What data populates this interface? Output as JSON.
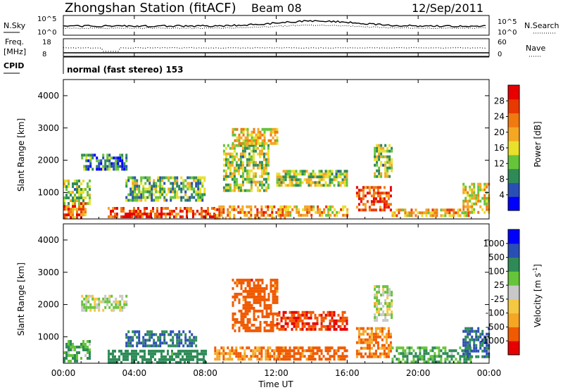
{
  "header": {
    "station": "Zhongshan Station (fitACF)",
    "beam": "Beam 08",
    "date": "12/Sep/2011",
    "cpid": "normal (fast stereo) 153"
  },
  "side_labels": {
    "nsky": "N.Sky",
    "freq_1": "Freq.",
    "freq_2": "[MHz]",
    "cpid": "CPID",
    "nsearch": "N.Search",
    "nave": "Nave"
  },
  "noise_axis": {
    "low": "10^0",
    "high": "10^5",
    "right_low": "10^0",
    "right_high": "10^5"
  },
  "freq_axis": {
    "low": "8",
    "high": "18",
    "right_low": "0",
    "right_high": "60"
  },
  "colors": {
    "power_scale": [
      "#0000ff",
      "#2a4fb4",
      "#2e8b57",
      "#66c43a",
      "#e8e02a",
      "#f5a623",
      "#f07a10",
      "#e83a00",
      "#e80000"
    ],
    "velocity_scale": [
      "#e80000",
      "#f05a00",
      "#f5a623",
      "#f5c842",
      "#c8c8c8",
      "#66c43a",
      "#2e8b57",
      "#2a4fb4",
      "#0000ff"
    ]
  },
  "chart_data": [
    {
      "type": "heatmap",
      "name": "power",
      "ylabel": "Slant Range [km]",
      "colorbar_label": "Power [dB]",
      "colorbar_ticks": [
        "4",
        "8",
        "12",
        "16",
        "20",
        "24",
        "28"
      ],
      "yticks": [
        "1000",
        "2000",
        "3000",
        "4000"
      ],
      "ylim": [
        180,
        4500
      ],
      "xlim_hours": [
        0,
        24
      ],
      "xticks": [
        "00:00",
        "04:00",
        "08:00",
        "12:00",
        "16:00",
        "20:00",
        "00:00"
      ],
      "regions": [
        {
          "t0": 0.0,
          "t1": 1.2,
          "r0": 250,
          "r1": 700,
          "value": 24
        },
        {
          "t0": 0.0,
          "t1": 1.5,
          "r0": 700,
          "r1": 1400,
          "value": 12
        },
        {
          "t0": 1.0,
          "t1": 3.5,
          "r0": 1700,
          "r1": 2200,
          "value": 8
        },
        {
          "t0": 2.5,
          "t1": 8.5,
          "r0": 250,
          "r1": 550,
          "value": 26
        },
        {
          "t0": 3.5,
          "t1": 8.0,
          "r0": 800,
          "r1": 1500,
          "value": 12
        },
        {
          "t0": 8.5,
          "t1": 12.5,
          "r0": 250,
          "r1": 600,
          "value": 22
        },
        {
          "t0": 9.0,
          "t1": 11.5,
          "r0": 1100,
          "r1": 2500,
          "value": 14
        },
        {
          "t0": 9.5,
          "t1": 12.0,
          "r0": 2500,
          "r1": 3000,
          "value": 18
        },
        {
          "t0": 12.0,
          "t1": 16.0,
          "r0": 1200,
          "r1": 1700,
          "value": 14
        },
        {
          "t0": 12.5,
          "t1": 16.0,
          "r0": 300,
          "r1": 600,
          "value": 20
        },
        {
          "t0": 16.5,
          "t1": 18.5,
          "r0": 500,
          "r1": 1200,
          "value": 26
        },
        {
          "t0": 17.5,
          "t1": 18.5,
          "r0": 1500,
          "r1": 2500,
          "value": 14
        },
        {
          "t0": 18.5,
          "t1": 23.0,
          "r0": 250,
          "r1": 500,
          "value": 20
        },
        {
          "t0": 22.5,
          "t1": 24.0,
          "r0": 350,
          "r1": 1300,
          "value": 18
        }
      ]
    },
    {
      "type": "heatmap",
      "name": "velocity",
      "ylabel": "Slant Range [km]",
      "colorbar_label": "Velocity [m s^-1]",
      "colorbar_ticks": [
        "-1000",
        "-500",
        "-100",
        "-25",
        "25",
        "100",
        "500",
        "1000"
      ],
      "yticks": [
        "1000",
        "2000",
        "3000",
        "4000"
      ],
      "ylim": [
        180,
        4500
      ],
      "xlim_hours": [
        0,
        24
      ],
      "xlabel": "Time UT",
      "xticks": [
        "00:00",
        "04:00",
        "08:00",
        "12:00",
        "16:00",
        "20:00",
        "00:00"
      ],
      "regions": [
        {
          "t0": 0.0,
          "t1": 1.5,
          "r0": 250,
          "r1": 900,
          "value": 100
        },
        {
          "t0": 1.0,
          "t1": 3.5,
          "r0": 1800,
          "r1": 2300,
          "value": 25
        },
        {
          "t0": 2.5,
          "t1": 8.0,
          "r0": 250,
          "r1": 600,
          "value": 300
        },
        {
          "t0": 3.5,
          "t1": 7.5,
          "r0": 700,
          "r1": 1200,
          "value": 500
        },
        {
          "t0": 8.5,
          "t1": 12.5,
          "r0": 300,
          "r1": 700,
          "value": -100
        },
        {
          "t0": 9.5,
          "t1": 12.0,
          "r0": 1200,
          "r1": 2800,
          "value": -300
        },
        {
          "t0": 12.0,
          "t1": 16.0,
          "r0": 1200,
          "r1": 1800,
          "value": -500
        },
        {
          "t0": 12.0,
          "t1": 16.0,
          "r0": 300,
          "r1": 700,
          "value": -200
        },
        {
          "t0": 16.5,
          "t1": 18.5,
          "r0": 400,
          "r1": 1300,
          "value": -100
        },
        {
          "t0": 17.5,
          "t1": 18.5,
          "r0": 1500,
          "r1": 2600,
          "value": 25
        },
        {
          "t0": 18.5,
          "t1": 23.0,
          "r0": 250,
          "r1": 700,
          "value": 100
        },
        {
          "t0": 22.5,
          "t1": 24.0,
          "r0": 350,
          "r1": 1300,
          "value": 500
        }
      ]
    }
  ]
}
